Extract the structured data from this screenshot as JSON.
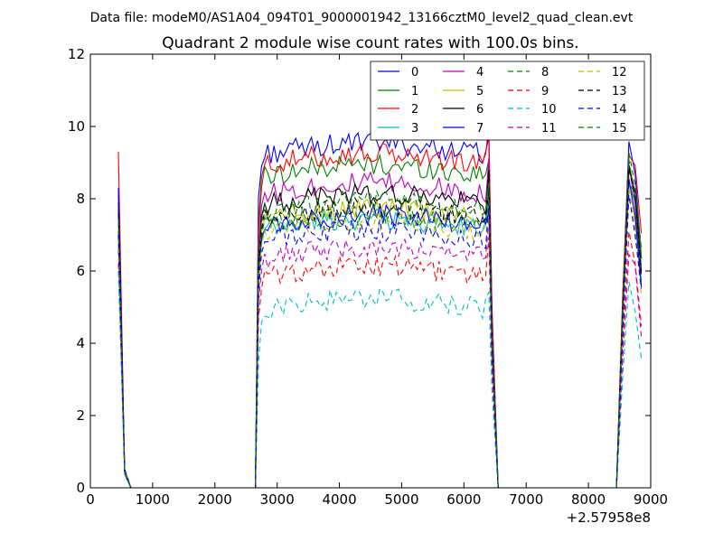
{
  "chart_data": {
    "type": "line",
    "suptitle": "Data file: modeM0/AS1A04_094T01_9000001942_13166cztM0_level2_quad_clean.evt",
    "title": "Quadrant 2 module wise count rates with 100.0s bins.",
    "xlabel": "",
    "ylabel": "",
    "xlim": [
      0,
      9000
    ],
    "ylim": [
      0,
      12
    ],
    "x_offset_label": "+2.57958e8",
    "x_ticks": [
      "0",
      "1000",
      "2000",
      "3000",
      "4000",
      "5000",
      "6000",
      "7000",
      "8000",
      "9000"
    ],
    "y_ticks": [
      "0",
      "2",
      "4",
      "6",
      "8",
      "10",
      "12"
    ],
    "legend_position": "top-right",
    "segments": [
      {
        "x_start": 450,
        "x_end": 550,
        "shape": "drop"
      },
      {
        "x_start": 550,
        "x_end": 2650,
        "shape": "zero"
      },
      {
        "x_start": 2650,
        "x_end": 6350,
        "shape": "plateau"
      },
      {
        "x_start": 6350,
        "x_end": 6550,
        "shape": "drop"
      },
      {
        "x_start": 6550,
        "x_end": 8450,
        "shape": "zero"
      },
      {
        "x_start": 8450,
        "x_end": 8850,
        "shape": "rise"
      }
    ],
    "series": [
      {
        "name": "0",
        "color": "#0000ff",
        "dash": "solid",
        "start": 8.1,
        "level": 9.2,
        "end": 8.7
      },
      {
        "name": "1",
        "color": "#008000",
        "dash": "solid",
        "start": 8.0,
        "level": 8.6,
        "end": 8.3
      },
      {
        "name": "2",
        "color": "#ff0000",
        "dash": "solid",
        "start": 9.3,
        "level": 8.9,
        "end": 8.9
      },
      {
        "name": "3",
        "color": "#00bfbf",
        "dash": "solid",
        "start": 7.0,
        "level": 7.1,
        "end": 7.6
      },
      {
        "name": "4",
        "color": "#bf00bf",
        "dash": "solid",
        "start": 7.7,
        "level": 8.1,
        "end": 8.0
      },
      {
        "name": "5",
        "color": "#bfbf00",
        "dash": "solid",
        "start": 7.3,
        "level": 7.4,
        "end": 7.5
      },
      {
        "name": "6",
        "color": "#000000",
        "dash": "solid",
        "start": 7.9,
        "level": 7.8,
        "end": 8.3
      },
      {
        "name": "7",
        "color": "#0000ff",
        "dash": "solid",
        "start": 8.3,
        "level": 7.2,
        "end": 7.8
      },
      {
        "name": "8",
        "color": "#008000",
        "dash": "dashed",
        "start": 7.1,
        "level": 7.2,
        "end": 8.0
      },
      {
        "name": "9",
        "color": "#ff0000",
        "dash": "dashed",
        "start": 6.2,
        "level": 5.8,
        "end": 6.4
      },
      {
        "name": "10",
        "color": "#00bfbf",
        "dash": "dashed",
        "start": 6.0,
        "level": 4.9,
        "end": 5.1
      },
      {
        "name": "11",
        "color": "#bf00bf",
        "dash": "dashed",
        "start": 6.6,
        "level": 6.3,
        "end": 6.0
      },
      {
        "name": "12",
        "color": "#bfbf00",
        "dash": "dashed",
        "start": 6.9,
        "level": 7.0,
        "end": 7.4
      },
      {
        "name": "13",
        "color": "#000000",
        "dash": "dashed",
        "start": 7.6,
        "level": 7.4,
        "end": 8.1
      },
      {
        "name": "14",
        "color": "#0000ff",
        "dash": "dashed",
        "start": 7.0,
        "level": 6.8,
        "end": 7.2
      },
      {
        "name": "15",
        "color": "#008000",
        "dash": "dashed",
        "start": 7.4,
        "level": 7.6,
        "end": 8.3
      }
    ]
  }
}
